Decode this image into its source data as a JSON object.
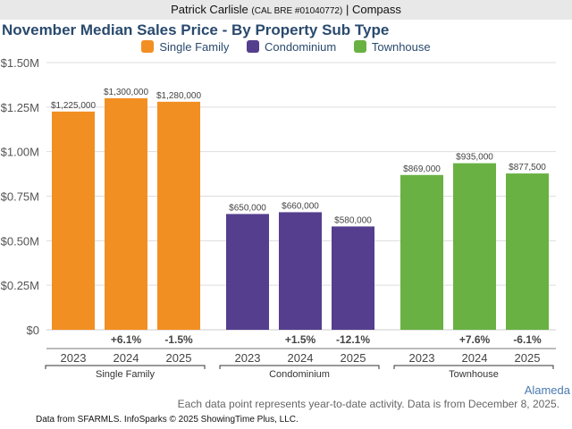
{
  "header": {
    "agent_name": "Patrick Carlisle",
    "license": "(CAL BRE #01040772)",
    "separator": "|",
    "brokerage": "Compass"
  },
  "footer": {
    "area": "Alameda",
    "note": "Each data point represents year-to-date activity. Data is from December 8, 2025.",
    "source": "Data from SFARMLS. InfoSparks © 2025 ShowingTime Plus, LLC."
  },
  "chart_data": {
    "type": "bar",
    "title": "November Median Sales Price - By Property Sub Type",
    "xlabel": "",
    "ylabel": "",
    "ylim": [
      0,
      1500000
    ],
    "yticks": [
      0,
      250000,
      500000,
      750000,
      1000000,
      1250000,
      1500000
    ],
    "ytick_labels": [
      "$0",
      "$0.25M",
      "$0.50M",
      "$0.75M",
      "$1.00M",
      "$1.25M",
      "$1.50M"
    ],
    "grid": true,
    "legend_position": "top-center",
    "categories": [
      "2023",
      "2024",
      "2025"
    ],
    "series": [
      {
        "name": "Single Family",
        "color": "#f28f22",
        "values": [
          1225000,
          1300000,
          1280000
        ],
        "labels": [
          "$1,225,000",
          "$1,300,000",
          "$1,280,000"
        ],
        "changes": [
          "",
          "+6.1%",
          "-1.5%"
        ]
      },
      {
        "name": "Condominium",
        "color": "#553e8e",
        "values": [
          650000,
          660000,
          580000
        ],
        "labels": [
          "$650,000",
          "$660,000",
          "$580,000"
        ],
        "changes": [
          "",
          "+1.5%",
          "-12.1%"
        ]
      },
      {
        "name": "Townhouse",
        "color": "#6ab143",
        "values": [
          869000,
          935000,
          877500
        ],
        "labels": [
          "$869,000",
          "$935,000",
          "$877,500"
        ],
        "changes": [
          "",
          "+7.6%",
          "-6.1%"
        ]
      }
    ]
  }
}
